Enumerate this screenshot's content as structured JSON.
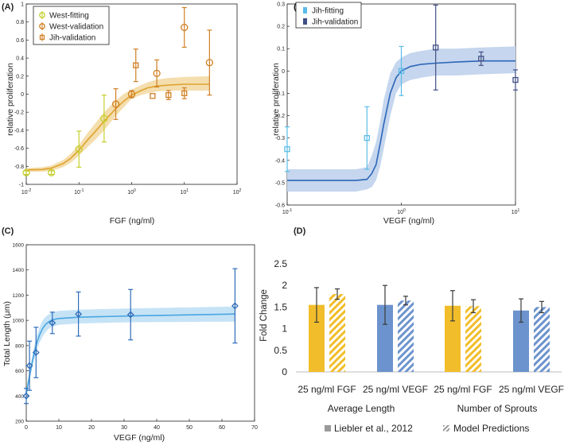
{
  "figure": {
    "colors": {
      "west_fit": "#c5cf2b",
      "west_val": "#d07f24",
      "jih_val_a": "#d07f24",
      "curve_a": "#dfa32f",
      "band_a": "#f4deae",
      "jih_fit": "#5bbce8",
      "jih_val_b": "#404f85",
      "curve_b": "#2c66b8",
      "band_b": "#c5d6ee",
      "curve_c": "#49a6e0",
      "band_c": "#c6e3f6",
      "pts_c": "#2e6cb8",
      "bar_fgf": "#f1bd2a",
      "bar_vegf": "#6c93cd",
      "err": "#3a3a3a"
    }
  },
  "chart_data": [
    {
      "panel": "(A)",
      "type": "scatter",
      "xscale": "log",
      "xlim": [
        0.01,
        100
      ],
      "ylim": [
        -1,
        1
      ],
      "xlabel": "FGF (ng/ml)",
      "ylabel": "relative proliferation",
      "xticks": [
        {
          "v": 0.01,
          "b": "10",
          "e": "-2"
        },
        {
          "v": 0.1,
          "b": "10",
          "e": "-1"
        },
        {
          "v": 1,
          "b": "10",
          "e": "0"
        },
        {
          "v": 10,
          "b": "10",
          "e": "1"
        },
        {
          "v": 100,
          "b": "10",
          "e": "2"
        }
      ],
      "yticks": [
        -1,
        -0.8,
        -0.6,
        -0.4,
        -0.2,
        0,
        0.2,
        0.4,
        0.6,
        0.8,
        1
      ],
      "legend": {
        "position": "top-left",
        "items": [
          "West-fitting",
          "West-validation",
          "Jih-validation"
        ]
      },
      "curve": {
        "x": [
          0.01,
          0.02,
          0.03,
          0.05,
          0.07,
          0.1,
          0.15,
          0.2,
          0.3,
          0.5,
          0.7,
          1,
          1.5,
          2,
          3,
          5,
          10,
          30
        ],
        "y": [
          -0.84,
          -0.835,
          -0.82,
          -0.77,
          -0.71,
          -0.62,
          -0.5,
          -0.42,
          -0.3,
          -0.16,
          -0.08,
          -0.01,
          0.04,
          0.07,
          0.09,
          0.1,
          0.11,
          0.11
        ],
        "lo": [
          -0.86,
          -0.86,
          -0.85,
          -0.81,
          -0.76,
          -0.68,
          -0.58,
          -0.51,
          -0.4,
          -0.24,
          -0.15,
          -0.05,
          -0.01,
          0.01,
          0.03,
          0.04,
          0.04,
          0.04
        ],
        "hi": [
          -0.82,
          -0.81,
          -0.79,
          -0.73,
          -0.66,
          -0.56,
          -0.42,
          -0.33,
          -0.2,
          -0.07,
          0.0,
          0.05,
          0.1,
          0.13,
          0.16,
          0.18,
          0.19,
          0.2
        ]
      },
      "series": [
        {
          "name": "West-fitting",
          "marker": "circle",
          "x": [
            0.01,
            0.03,
            0.1,
            0.3
          ],
          "y": [
            -0.87,
            -0.87,
            -0.61,
            -0.27
          ],
          "err": [
            0.02,
            0.02,
            0.2,
            0.26
          ]
        },
        {
          "name": "West-validation",
          "marker": "circle",
          "x": [
            0.5,
            1,
            3,
            10,
            30
          ],
          "y": [
            -0.11,
            0.0,
            0.23,
            0.74,
            0.35
          ],
          "err": [
            0.17,
            0.04,
            0.15,
            0.22,
            0.36
          ]
        },
        {
          "name": "Jih-validation",
          "marker": "square",
          "x": [
            1.2,
            2.5,
            5,
            10
          ],
          "y": [
            0.32,
            -0.02,
            -0.01,
            0.01
          ],
          "err": [
            0.18,
            0.0,
            0.05,
            0.06
          ]
        }
      ]
    },
    {
      "panel": "(B)",
      "type": "scatter",
      "xscale": "log",
      "xlim": [
        0.1,
        10
      ],
      "ylim": [
        -0.6,
        0.3
      ],
      "xlabel": "VEGF (ng/ml)",
      "ylabel": "relative proliferation",
      "xticks": [
        {
          "v": 0.1,
          "b": "10",
          "e": "-1"
        },
        {
          "v": 1,
          "b": "10",
          "e": "0"
        },
        {
          "v": 10,
          "b": "10",
          "e": "1"
        }
      ],
      "yticks": [
        -0.6,
        -0.5,
        -0.4,
        -0.3,
        -0.2,
        -0.1,
        0,
        0.1,
        0.2,
        0.3
      ],
      "legend": {
        "position": "top-left",
        "items": [
          "Jih-fitting",
          "Jih-validation"
        ]
      },
      "curve": {
        "x": [
          0.1,
          0.2,
          0.3,
          0.4,
          0.5,
          0.55,
          0.6,
          0.65,
          0.7,
          0.8,
          0.9,
          1,
          1.2,
          1.5,
          2,
          3,
          5,
          10
        ],
        "y": [
          -0.49,
          -0.49,
          -0.49,
          -0.49,
          -0.485,
          -0.46,
          -0.42,
          -0.33,
          -0.24,
          -0.1,
          -0.03,
          0.0,
          0.02,
          0.03,
          0.035,
          0.04,
          0.045,
          0.045
        ],
        "lo": [
          -0.54,
          -0.54,
          -0.54,
          -0.54,
          -0.53,
          -0.52,
          -0.49,
          -0.43,
          -0.35,
          -0.2,
          -0.1,
          -0.06,
          -0.04,
          -0.03,
          -0.02,
          -0.02,
          -0.015,
          -0.01
        ],
        "hi": [
          -0.44,
          -0.44,
          -0.44,
          -0.44,
          -0.43,
          -0.38,
          -0.32,
          -0.23,
          -0.13,
          -0.01,
          0.04,
          0.06,
          0.08,
          0.09,
          0.1,
          0.1,
          0.105,
          0.11
        ]
      },
      "series": [
        {
          "name": "Jih-fitting",
          "marker": "square",
          "x": [
            0.1,
            0.5,
            1
          ],
          "y": [
            -0.35,
            -0.3,
            0.0
          ],
          "err": [
            0.1,
            0.14,
            0.11
          ]
        },
        {
          "name": "Jih-validation",
          "marker": "square",
          "x": [
            2,
            5,
            10
          ],
          "y": [
            0.105,
            0.055,
            -0.04
          ],
          "err": [
            0.19,
            0.03,
            0.045
          ]
        }
      ]
    },
    {
      "panel": "(C)",
      "type": "line",
      "xlim": [
        0,
        70
      ],
      "ylim": [
        200,
        1600
      ],
      "xlabel": "VEGF (ng/ml)",
      "ylabel": "Total Length (μm)",
      "xticks": [
        0,
        10,
        20,
        30,
        40,
        50,
        60,
        70
      ],
      "yticks": [
        200,
        400,
        600,
        800,
        1000,
        1200,
        1400,
        1600
      ],
      "curve": {
        "x": [
          0,
          1,
          2,
          3,
          4,
          5,
          6,
          7,
          8,
          10,
          16,
          32,
          64
        ],
        "y": [
          420,
          560,
          690,
          800,
          880,
          935,
          970,
          990,
          1005,
          1015,
          1025,
          1035,
          1050
        ],
        "lo": [
          390,
          520,
          640,
          740,
          820,
          870,
          910,
          935,
          950,
          965,
          975,
          985,
          990
        ],
        "hi": [
          450,
          600,
          740,
          860,
          940,
          1000,
          1030,
          1050,
          1065,
          1075,
          1085,
          1095,
          1110
        ]
      },
      "series": [
        {
          "name": "Total Length",
          "marker": "diamond",
          "x": [
            0,
            1,
            3,
            8,
            16,
            32,
            64
          ],
          "y": [
            400,
            640,
            745,
            980,
            1050,
            1045,
            1115
          ],
          "err": [
            60,
            195,
            200,
            85,
            175,
            200,
            295
          ]
        }
      ]
    },
    {
      "panel": "(D)",
      "type": "bar",
      "ylabel": "Fold Change",
      "ylim": [
        0,
        2.5
      ],
      "yticks": [
        "0",
        "0.5",
        "1",
        "1.5",
        "2",
        "2.5"
      ],
      "categories": [
        "25 ng/ml FGF",
        "25 ng/ml VEGF",
        "25 ng/ml FGF",
        "25 ng/ml VEGF"
      ],
      "groups": [
        "Average Length",
        "Number of Sprouts"
      ],
      "series": [
        {
          "name": "Liebler et al., 2012",
          "pattern": "solid",
          "values": [
            1.55,
            1.55,
            1.53,
            1.42
          ],
          "err": [
            0.4,
            0.45,
            0.35,
            0.27
          ]
        },
        {
          "name": "Model Predictions",
          "pattern": "hatched",
          "values": [
            1.8,
            1.65,
            1.52,
            1.5
          ],
          "err": [
            0.12,
            0.1,
            0.15,
            0.13
          ]
        }
      ]
    }
  ]
}
